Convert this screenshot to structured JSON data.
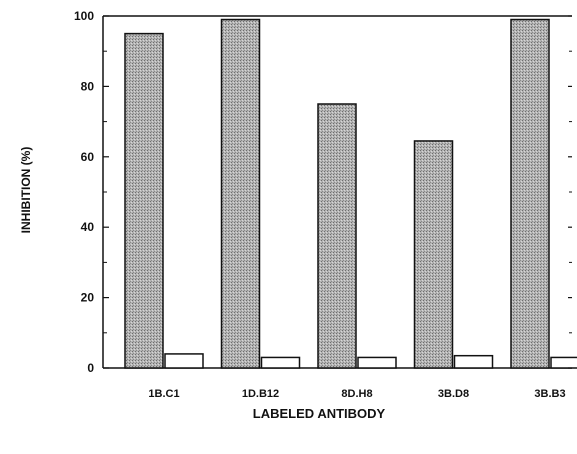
{
  "chart_data": {
    "type": "bar",
    "categories": [
      "1B.C1",
      "1D.B12",
      "8D.H8",
      "3B.D8",
      "3B.B3"
    ],
    "series": [
      {
        "values": [
          95,
          99,
          75,
          64.5,
          99
        ],
        "color": "#a8a8a8",
        "pattern": "stipple"
      },
      {
        "values": [
          4,
          3,
          3,
          3.5,
          3
        ],
        "color": "#ffffff"
      }
    ],
    "xlabel": "LABELED ANTIBODY",
    "ylabel": "INHIBITION  (%)",
    "ylim": [
      0,
      100
    ],
    "yticks": [
      0,
      20,
      40,
      60,
      80,
      100
    ],
    "grid": false,
    "legend": "none"
  }
}
